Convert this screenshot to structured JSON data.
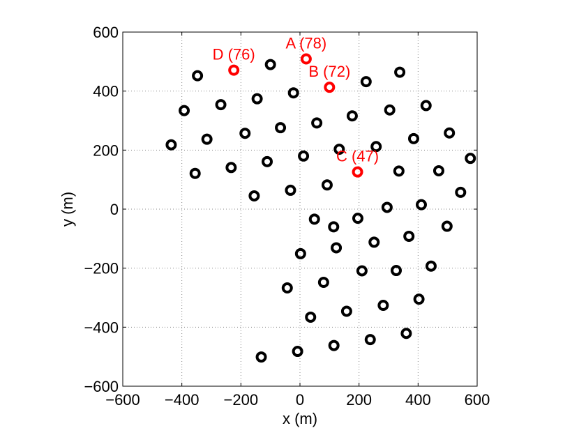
{
  "chart_data": {
    "type": "scatter",
    "title": "",
    "xlabel": "x (m)",
    "ylabel": "y (m)",
    "xlim": [
      -600,
      600
    ],
    "ylim": [
      -600,
      600
    ],
    "xticks": [
      -600,
      -400,
      -200,
      0,
      200,
      400,
      600
    ],
    "yticks": [
      -600,
      -400,
      -200,
      0,
      200,
      400,
      600
    ],
    "xtick_labels": [
      "−600",
      "−400",
      "−200",
      "0",
      "200",
      "400",
      "600"
    ],
    "ytick_labels": [
      "−600",
      "−400",
      "−200",
      "0",
      "200",
      "400",
      "600"
    ],
    "grid": true,
    "grid_style": "dotted",
    "marker": "open-circle",
    "colors": {
      "default": "#000000",
      "highlight": "#ff0000"
    },
    "series": [
      {
        "color": "#000000",
        "points": [
          [
            -347,
            452
          ],
          [
            -100,
            490
          ],
          [
            -392,
            334
          ],
          [
            -268,
            354
          ],
          [
            -145,
            374
          ],
          [
            -22,
            394
          ],
          [
            -186,
            257
          ],
          [
            -66,
            276
          ],
          [
            57,
            292
          ],
          [
            -436,
            218
          ],
          [
            -315,
            237
          ],
          [
            -233,
            141
          ],
          [
            -111,
            161
          ],
          [
            12,
            180
          ],
          [
            133,
            203
          ],
          [
            -355,
            121
          ],
          [
            -155,
            45
          ],
          [
            -32,
            64
          ],
          [
            92,
            82
          ],
          [
            224,
            432
          ],
          [
            338,
            464
          ],
          [
            177,
            316
          ],
          [
            304,
            336
          ],
          [
            427,
            351
          ],
          [
            258,
            212
          ],
          [
            385,
            239
          ],
          [
            506,
            258
          ],
          [
            335,
            129
          ],
          [
            470,
            130
          ],
          [
            577,
            172
          ],
          [
            544,
            57
          ],
          [
            295,
            6
          ],
          [
            411,
            15
          ],
          [
            49,
            -34
          ],
          [
            114,
            -60
          ],
          [
            196,
            -31
          ],
          [
            498,
            -58
          ],
          [
            369,
            -92
          ],
          [
            251,
            -112
          ],
          [
            123,
            -131
          ],
          [
            2,
            -151
          ],
          [
            444,
            -193
          ],
          [
            210,
            -209
          ],
          [
            326,
            -208
          ],
          [
            80,
            -248
          ],
          [
            -43,
            -267
          ],
          [
            403,
            -305
          ],
          [
            282,
            -326
          ],
          [
            158,
            -346
          ],
          [
            36,
            -366
          ],
          [
            360,
            -421
          ],
          [
            238,
            -442
          ],
          [
            115,
            -462
          ],
          [
            -8,
            -482
          ],
          [
            -131,
            -501
          ]
        ]
      },
      {
        "color": "#ff0000",
        "points": [
          {
            "x": 21,
            "y": 509,
            "label": "A (78)"
          },
          {
            "x": 100,
            "y": 413,
            "label": "B (72)"
          },
          {
            "x": 195,
            "y": 126,
            "label": "C (47)"
          },
          {
            "x": -224,
            "y": 471,
            "label": "D (76)"
          }
        ]
      }
    ]
  }
}
